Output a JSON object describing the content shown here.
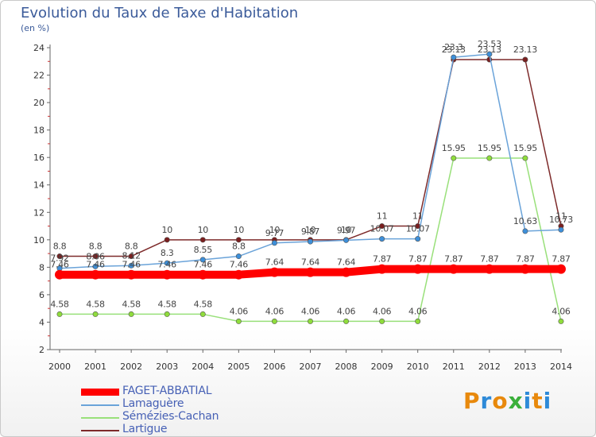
{
  "chart_data": {
    "type": "line",
    "title": "Evolution du Taux de Taxe d'Habitation",
    "subtitle": "(en %)",
    "xlabel": "",
    "ylabel": "",
    "x": [
      "2000",
      "2001",
      "2002",
      "2003",
      "2004",
      "2005",
      "2006",
      "2007",
      "2008",
      "2009",
      "2010",
      "2011",
      "2012",
      "2013",
      "2014"
    ],
    "ylim": [
      2,
      24
    ],
    "yticks": [
      2,
      4,
      6,
      8,
      10,
      12,
      14,
      16,
      18,
      20,
      22,
      24
    ],
    "grid": false,
    "legend_position": "bottom-left",
    "series": [
      {
        "name": "FAGET-ABBATIAL",
        "color": "#ff0000",
        "marker": "#ff0000",
        "values": [
          7.46,
          7.46,
          7.46,
          7.46,
          7.46,
          7.46,
          7.64,
          7.64,
          7.64,
          7.87,
          7.87,
          7.87,
          7.87,
          7.87,
          7.87
        ],
        "labels": [
          "7.46",
          "7.46",
          "7.46",
          "7.46",
          "7.46",
          "7.46",
          "7.64",
          "7.64",
          "7.64",
          "7.87",
          "7.87",
          "7.87",
          "7.87",
          "7.87",
          "7.87"
        ]
      },
      {
        "name": "Lamaguère",
        "color": "#6aa3d9",
        "marker": "#3d8fd9",
        "values": [
          7.92,
          8.06,
          8.12,
          8.3,
          8.55,
          8.8,
          9.77,
          9.87,
          9.97,
          10.07,
          10.07,
          23.3,
          23.53,
          10.63,
          10.73
        ],
        "labels": [
          "7.92",
          "8.06",
          "8.12",
          "8.3",
          "8.55",
          "8.8",
          "9.77",
          "9.87",
          "9.97",
          "10.07",
          "10.07",
          "23.3",
          "23.53",
          "10.63",
          "10.73"
        ]
      },
      {
        "name": "Sémézies-Cachan",
        "color": "#99e07a",
        "marker": "#8fdc3c",
        "values": [
          4.58,
          4.58,
          4.58,
          4.58,
          4.58,
          4.06,
          4.06,
          4.06,
          4.06,
          4.06,
          4.06,
          15.95,
          15.95,
          15.95,
          4.06
        ],
        "labels": [
          "4.58",
          "4.58",
          "4.58",
          "4.58",
          "4.58",
          "4.06",
          "4.06",
          "4.06",
          "4.06",
          "4.06",
          "4.06",
          "15.95",
          "15.95",
          "15.95",
          "4.06"
        ]
      },
      {
        "name": "Lartigue",
        "color": "#7d2a2a",
        "marker": "#7a1f1f",
        "values": [
          8.8,
          8.8,
          8.8,
          10,
          10,
          10,
          10,
          10,
          10,
          11,
          11,
          23.13,
          23.13,
          23.13,
          11
        ],
        "labels": [
          "8.8",
          "8.8",
          "8.8",
          "10",
          "10",
          "10",
          "10",
          "10",
          "10",
          "11",
          "11",
          "23.13",
          "23.13",
          "23.13",
          "11"
        ]
      }
    ]
  },
  "brand": {
    "logo_text": [
      "P",
      "r",
      "o",
      "x",
      "i",
      "t",
      "i"
    ],
    "logo_colors": [
      "#e8890c",
      "#2e8ad8",
      "#e8890c",
      "#3bb03b",
      "#2e8ad8",
      "#e8890c",
      "#2e8ad8"
    ]
  }
}
